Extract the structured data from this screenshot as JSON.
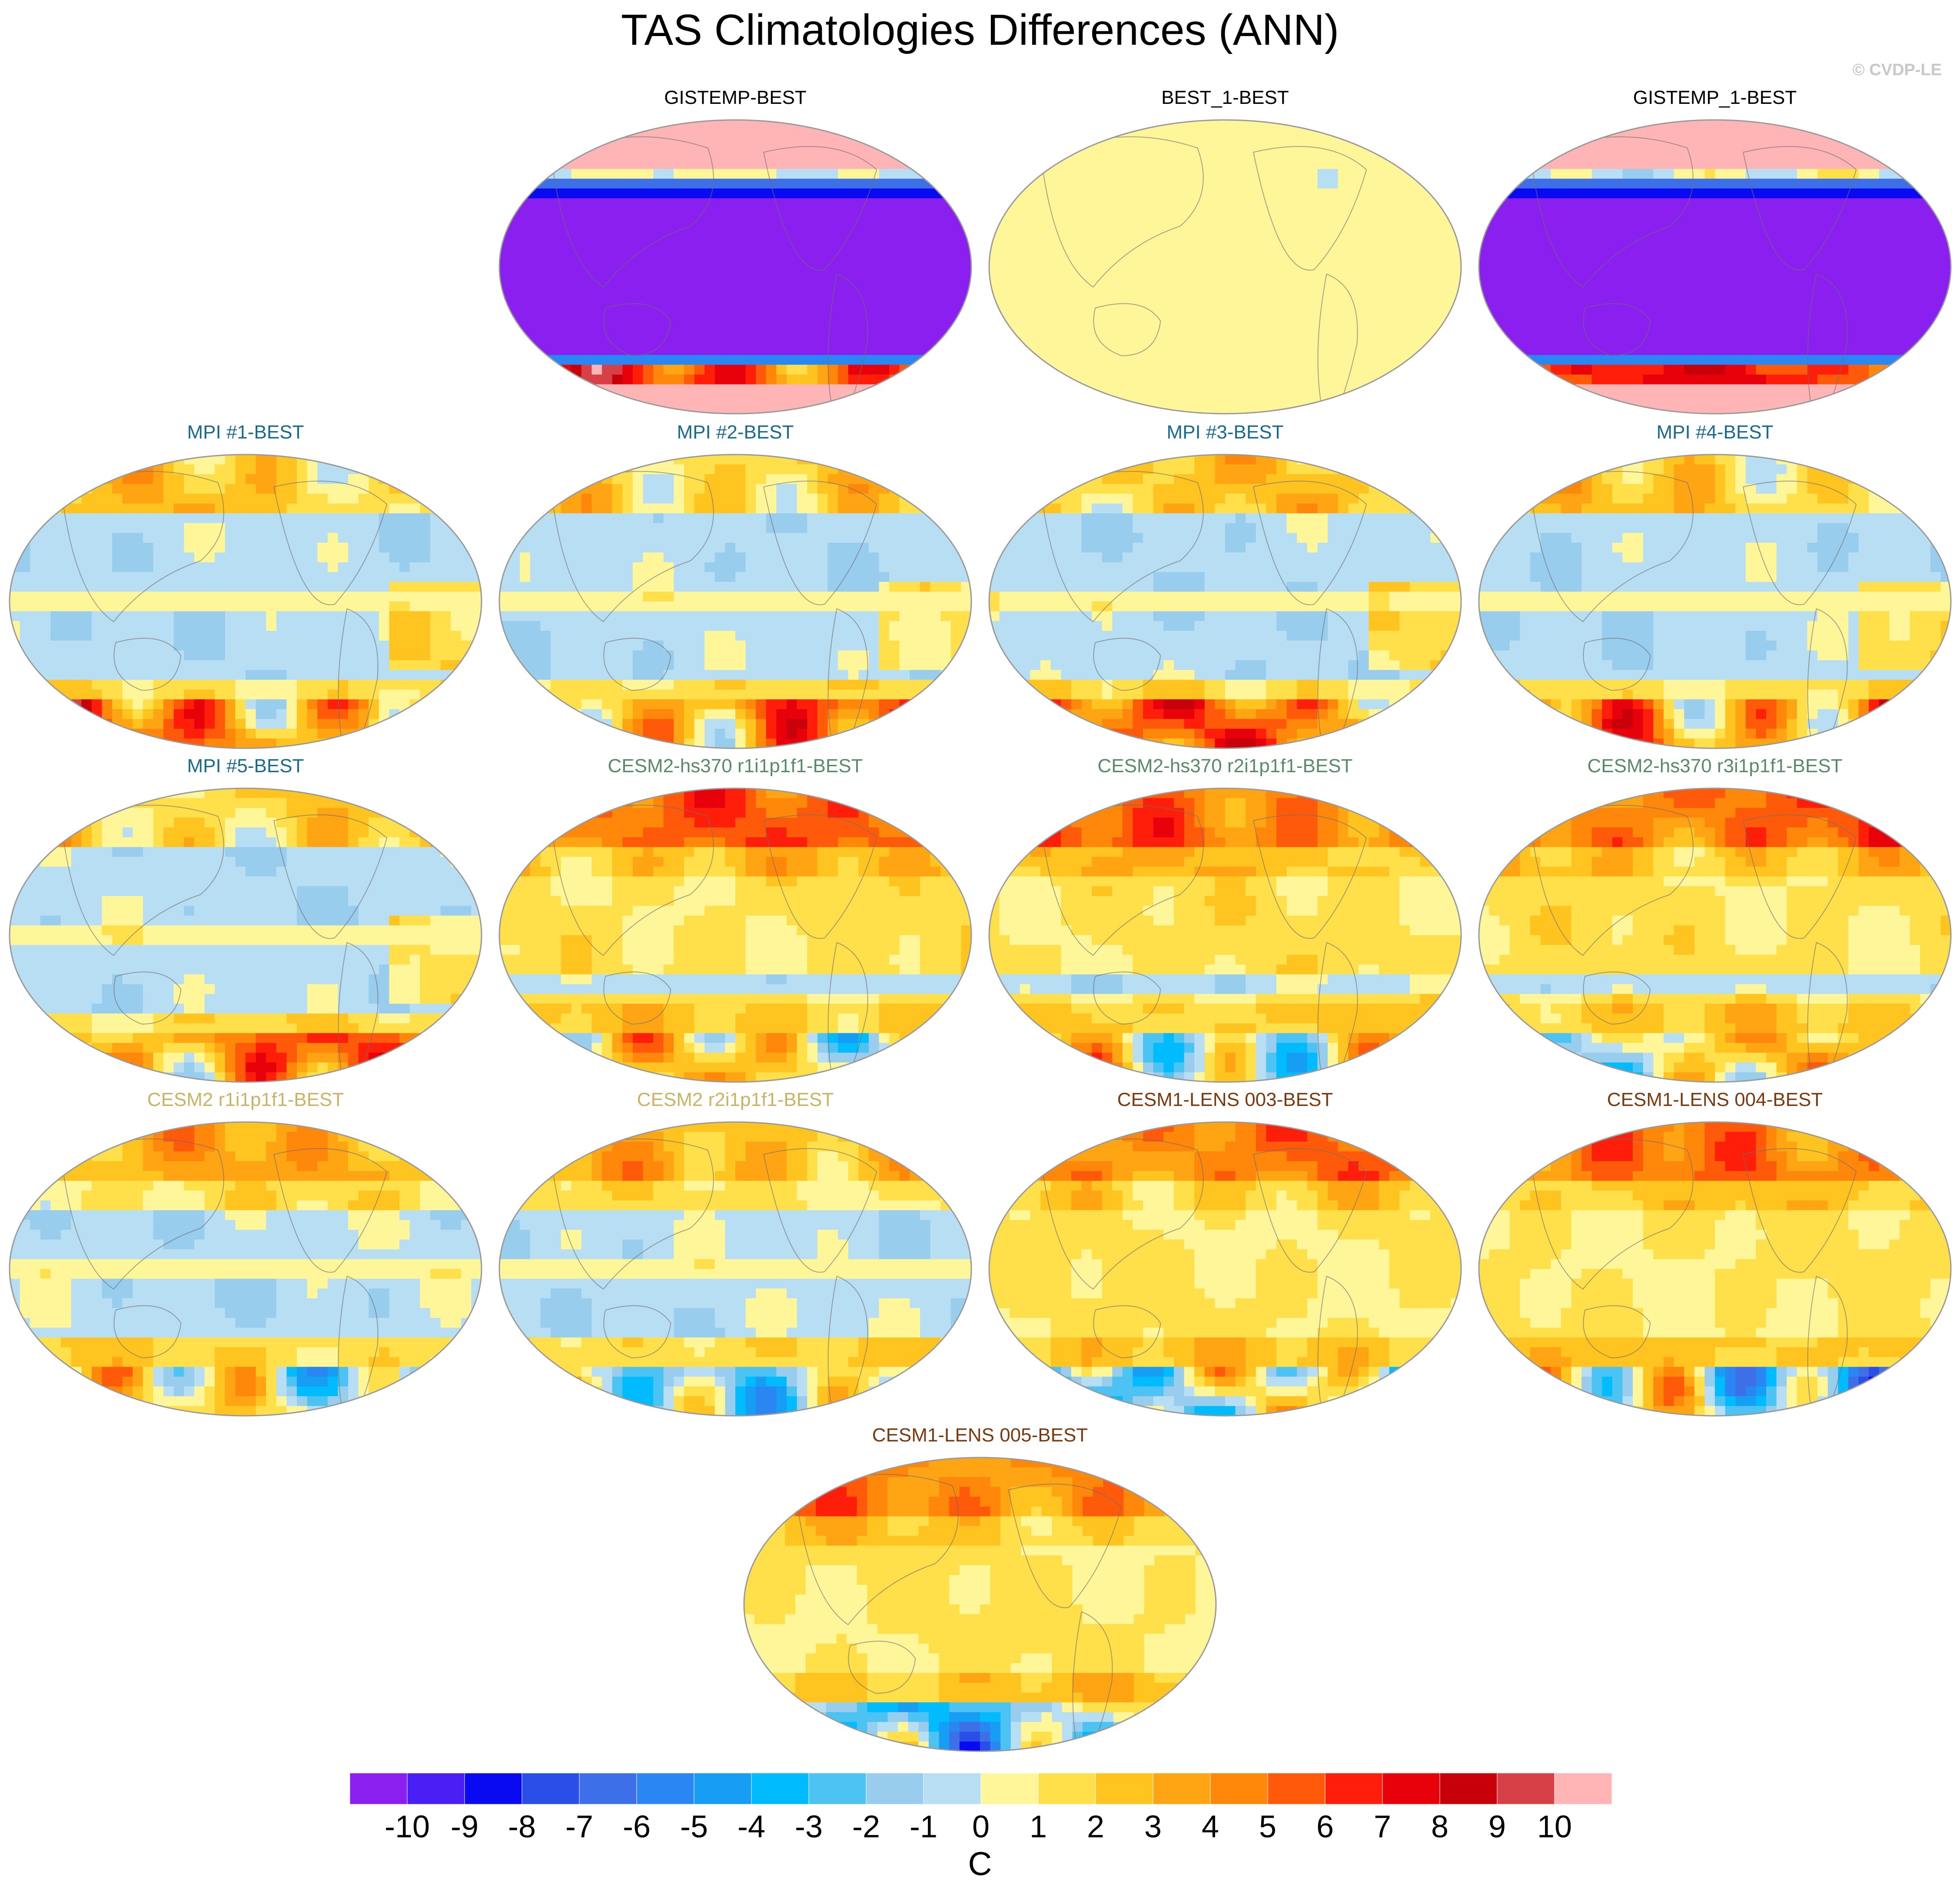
{
  "title": "TAS Climatologies Differences (ANN)",
  "credit": "© CVDP-LE",
  "chart_data": {
    "type": "heatmap",
    "map_projection": "global, Pacific-centered",
    "colorbar": {
      "unit": "C",
      "tick_labels": [
        "-10",
        "-9",
        "-8",
        "-7",
        "-6",
        "-5",
        "-4",
        "-3",
        "-2",
        "-1",
        "0",
        "1",
        "2",
        "3",
        "4",
        "5",
        "6",
        "7",
        "8",
        "9",
        "10"
      ],
      "ticks": [
        -10,
        -9,
        -8,
        -7,
        -6,
        -5,
        -4,
        -3,
        -2,
        -1,
        0,
        1,
        2,
        3,
        4,
        5,
        6,
        7,
        8,
        9,
        10
      ],
      "colors": [
        "#8a1fef",
        "#4a1ff5",
        "#0a0af2",
        "#2a4ee8",
        "#3d6fe8",
        "#2a86f2",
        "#169ef5",
        "#00bcff",
        "#4cc3f2",
        "#98cdee",
        "#b8def4",
        "#fff69a",
        "#ffe04a",
        "#ffc41f",
        "#ffa514",
        "#ff870a",
        "#ff5a0a",
        "#ff1e0a",
        "#e8000a",
        "#c8000a",
        "#d84048",
        "#ffb4b6"
      ]
    },
    "panels": [
      {
        "name": "GISTEMP-BEST",
        "pattern": "obsdiff",
        "title_color": "#000000"
      },
      {
        "name": "BEST_1-BEST",
        "pattern": "zero",
        "title_color": "#000000"
      },
      {
        "name": "GISTEMP_1-BEST",
        "pattern": "obsdiff",
        "title_color": "#000000"
      },
      {
        "name": "MPI #1-BEST",
        "pattern": "mpi",
        "title_color": "#1a6a8c"
      },
      {
        "name": "MPI #2-BEST",
        "pattern": "mpi",
        "title_color": "#1a6a8c"
      },
      {
        "name": "MPI #3-BEST",
        "pattern": "mpi",
        "title_color": "#1a6a8c"
      },
      {
        "name": "MPI #4-BEST",
        "pattern": "mpi",
        "title_color": "#1a6a8c"
      },
      {
        "name": "MPI #5-BEST",
        "pattern": "mpi",
        "title_color": "#1a6a8c"
      },
      {
        "name": "CESM2-hs370 r1i1p1f1-BEST",
        "pattern": "warm",
        "title_color": "#5a8a6a"
      },
      {
        "name": "CESM2-hs370 r2i1p1f1-BEST",
        "pattern": "warm",
        "title_color": "#5a8a6a"
      },
      {
        "name": "CESM2-hs370 r3i1p1f1-BEST",
        "pattern": "warm",
        "title_color": "#5a8a6a"
      },
      {
        "name": "CESM2 r1i1p1f1-BEST",
        "pattern": "cesm2",
        "title_color": "#c8b464"
      },
      {
        "name": "CESM2 r2i1p1f1-BEST",
        "pattern": "cesm2",
        "title_color": "#c8b464"
      },
      {
        "name": "CESM1-LENS 003-BEST",
        "pattern": "lens",
        "title_color": "#7a3a10"
      },
      {
        "name": "CESM1-LENS 004-BEST",
        "pattern": "lens",
        "title_color": "#7a3a10"
      },
      {
        "name": "CESM1-LENS 005-BEST",
        "pattern": "lens",
        "title_color": "#7a3a10"
      }
    ]
  }
}
